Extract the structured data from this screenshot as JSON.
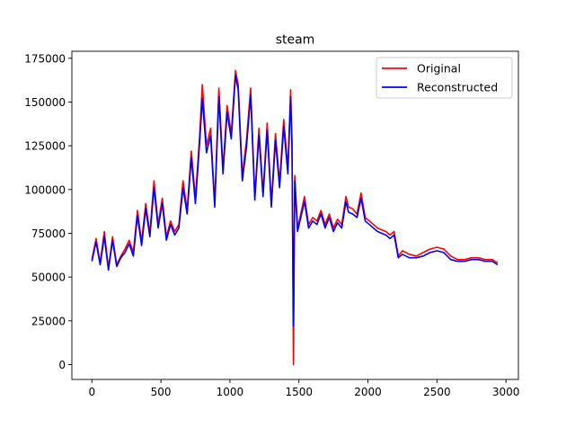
{
  "chart_data": {
    "type": "line",
    "title": "steam",
    "xlabel": "",
    "ylabel": "",
    "xlim": [
      -145,
      3090
    ],
    "ylim": [
      -8500,
      179000
    ],
    "xticks": [
      0,
      500,
      1000,
      1500,
      2000,
      2500,
      3000
    ],
    "yticks": [
      0,
      25000,
      50000,
      75000,
      100000,
      125000,
      150000,
      175000
    ],
    "xtick_labels": [
      "0",
      "500",
      "1000",
      "1500",
      "2000",
      "2500",
      "3000"
    ],
    "ytick_labels": [
      "0",
      "25000",
      "50000",
      "75000",
      "100000",
      "125000",
      "150000",
      "175000"
    ],
    "legend_position": "upper right",
    "series": [
      {
        "name": "Original",
        "color": "#ff0000",
        "x": [
          0,
          30,
          60,
          90,
          120,
          150,
          180,
          210,
          240,
          270,
          300,
          330,
          360,
          390,
          420,
          450,
          480,
          510,
          540,
          570,
          600,
          630,
          660,
          690,
          720,
          750,
          780,
          800,
          830,
          860,
          890,
          920,
          950,
          980,
          1010,
          1040,
          1060,
          1090,
          1120,
          1150,
          1180,
          1210,
          1240,
          1270,
          1300,
          1330,
          1360,
          1390,
          1420,
          1440,
          1450,
          1460,
          1470,
          1490,
          1510,
          1540,
          1570,
          1600,
          1630,
          1660,
          1690,
          1720,
          1750,
          1780,
          1810,
          1840,
          1860,
          1890,
          1920,
          1950,
          1980,
          2010,
          2040,
          2070,
          2100,
          2130,
          2160,
          2190,
          2220,
          2250,
          2300,
          2350,
          2400,
          2450,
          2500,
          2550,
          2600,
          2650,
          2700,
          2750,
          2800,
          2850,
          2900,
          2940
        ],
        "values": [
          60000,
          72000,
          58000,
          76000,
          55000,
          73000,
          57000,
          62000,
          66000,
          71000,
          64000,
          88000,
          70000,
          92000,
          75000,
          105000,
          80000,
          95000,
          73000,
          82000,
          76000,
          80000,
          105000,
          88000,
          122000,
          95000,
          130000,
          160000,
          125000,
          135000,
          92000,
          158000,
          112000,
          148000,
          132000,
          168000,
          160000,
          108000,
          128000,
          158000,
          96000,
          135000,
          98000,
          138000,
          92000,
          132000,
          104000,
          140000,
          112000,
          157000,
          128000,
          0,
          108000,
          78000,
          85000,
          96000,
          80000,
          84000,
          82000,
          88000,
          80000,
          86000,
          78000,
          83000,
          80000,
          96000,
          90000,
          89000,
          86000,
          98000,
          84000,
          82000,
          80000,
          78000,
          77000,
          76000,
          74000,
          76000,
          62000,
          65000,
          63000,
          62000,
          64000,
          66000,
          67000,
          66000,
          62000,
          60000,
          60000,
          61000,
          61000,
          60000,
          60000,
          58000
        ]
      },
      {
        "name": "Reconstructed",
        "color": "#0000ff",
        "x": [
          0,
          30,
          60,
          90,
          120,
          150,
          180,
          210,
          240,
          270,
          300,
          330,
          360,
          390,
          420,
          450,
          480,
          510,
          540,
          570,
          600,
          630,
          660,
          690,
          720,
          750,
          780,
          800,
          830,
          860,
          890,
          920,
          950,
          980,
          1010,
          1040,
          1060,
          1090,
          1120,
          1150,
          1180,
          1210,
          1240,
          1270,
          1300,
          1330,
          1360,
          1390,
          1420,
          1440,
          1450,
          1460,
          1470,
          1490,
          1510,
          1540,
          1570,
          1600,
          1630,
          1660,
          1690,
          1720,
          1750,
          1780,
          1810,
          1840,
          1860,
          1890,
          1920,
          1950,
          1980,
          2010,
          2040,
          2070,
          2100,
          2130,
          2160,
          2190,
          2220,
          2250,
          2300,
          2350,
          2400,
          2450,
          2500,
          2550,
          2600,
          2650,
          2700,
          2750,
          2800,
          2850,
          2900,
          2940
        ],
        "values": [
          59000,
          70000,
          57000,
          73000,
          54000,
          71000,
          56000,
          61000,
          64000,
          69000,
          62000,
          85000,
          68000,
          89000,
          73000,
          101000,
          78000,
          92000,
          71000,
          80000,
          74000,
          78000,
          101000,
          86000,
          118000,
          92000,
          126000,
          152000,
          121000,
          131000,
          90000,
          153000,
          109000,
          144000,
          129000,
          165000,
          157000,
          105000,
          124000,
          154000,
          94000,
          131000,
          96000,
          134000,
          90000,
          128000,
          101000,
          136000,
          109000,
          153000,
          124000,
          22000,
          105000,
          76000,
          83000,
          93000,
          78000,
          82000,
          80000,
          86000,
          78000,
          84000,
          76000,
          81000,
          78000,
          93000,
          87000,
          86000,
          84000,
          95000,
          82000,
          80000,
          78000,
          76000,
          75000,
          74000,
          72000,
          74000,
          61000,
          63000,
          61000,
          61000,
          62000,
          64000,
          65000,
          64000,
          60000,
          59000,
          59000,
          60000,
          60000,
          59000,
          59000,
          57000
        ]
      }
    ]
  }
}
